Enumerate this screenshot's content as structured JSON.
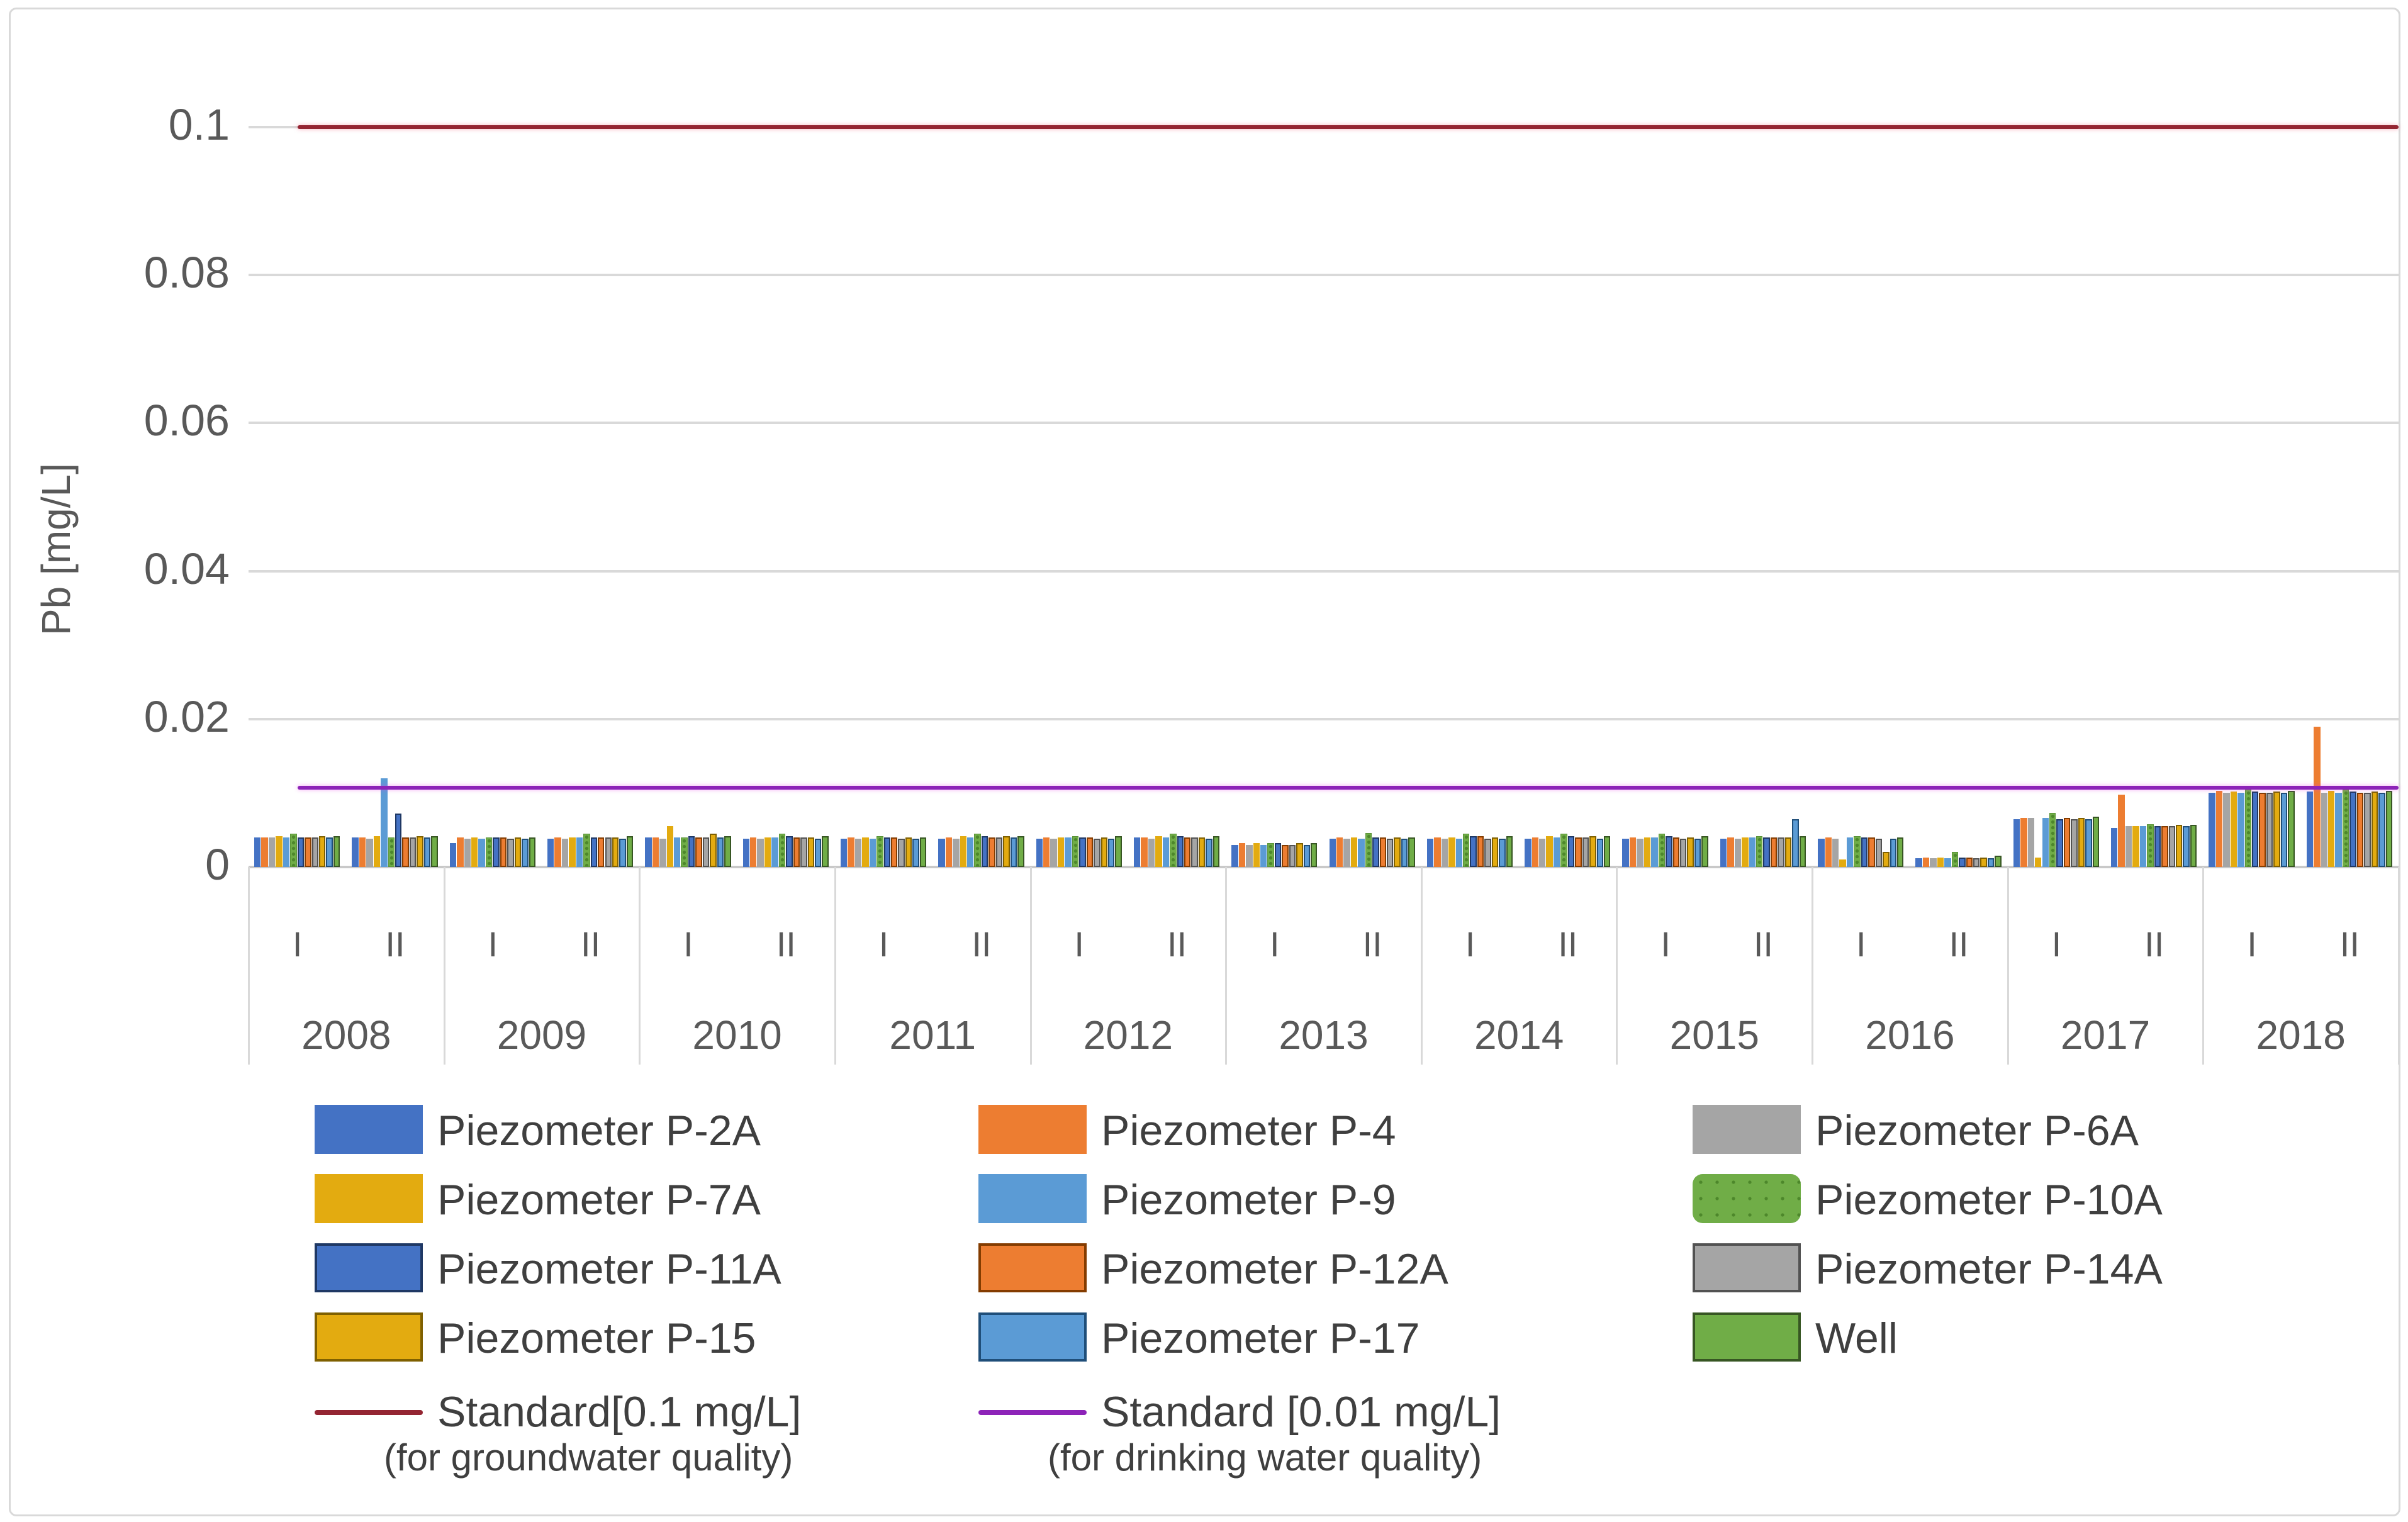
{
  "figure": {
    "background": "#ffffff",
    "border_color": "#d9d9d9"
  },
  "chart_data": {
    "type": "bar",
    "title": "",
    "ylabel": "Pb [mg/L]",
    "xlabel": "",
    "grid": "horizontal",
    "legend_position": "bottom",
    "ylim": [
      0,
      0.105
    ],
    "y_ticks": [
      0,
      0.02,
      0.04,
      0.06,
      0.08,
      0.1
    ],
    "y_tick_labels": [
      "0",
      "0.02",
      "0.04",
      "0.06",
      "0.08",
      "0.1"
    ],
    "years": [
      "2008",
      "2009",
      "2010",
      "2011",
      "2012",
      "2013",
      "2014",
      "2015",
      "2016",
      "2017",
      "2018"
    ],
    "periods": [
      "I",
      "II"
    ],
    "categories": [
      "2008-I",
      "2008-II",
      "2009-I",
      "2009-II",
      "2010-I",
      "2010-II",
      "2011-I",
      "2011-II",
      "2012-I",
      "2012-II",
      "2013-I",
      "2013-II",
      "2014-I",
      "2014-II",
      "2015-I",
      "2015-II",
      "2016-I",
      "2016-II",
      "2017-I",
      "2017-II",
      "2018-I",
      "2018-II"
    ],
    "series": [
      {
        "name": "Piezometer P-2A",
        "color": "#4472c4",
        "border": null,
        "pattern": false,
        "values": [
          0.004,
          0.004,
          0.0032,
          0.0038,
          0.004,
          0.0038,
          0.0038,
          0.0038,
          0.0038,
          0.004,
          0.003,
          0.0038,
          0.0038,
          0.0038,
          0.0038,
          0.0038,
          0.0038,
          0.0012,
          0.0065,
          0.0053,
          0.01,
          0.0102
        ]
      },
      {
        "name": "Piezometer P-4",
        "color": "#ed7d31",
        "border": null,
        "pattern": false,
        "values": [
          0.004,
          0.004,
          0.004,
          0.004,
          0.004,
          0.004,
          0.004,
          0.004,
          0.004,
          0.004,
          0.0032,
          0.004,
          0.004,
          0.004,
          0.004,
          0.004,
          0.004,
          0.0013,
          0.0066,
          0.0098,
          0.0103,
          0.019
        ]
      },
      {
        "name": "Piezometer P-6A",
        "color": "#a5a5a5",
        "border": null,
        "pattern": false,
        "values": [
          0.004,
          0.0038,
          0.0038,
          0.0038,
          0.0038,
          0.0038,
          0.0038,
          0.0038,
          0.0038,
          0.0038,
          0.003,
          0.0038,
          0.0038,
          0.0038,
          0.0038,
          0.0038,
          0.0038,
          0.0012,
          0.0066,
          0.0055,
          0.01,
          0.01
        ]
      },
      {
        "name": "Piezometer P-7A",
        "color": "#e3ab10",
        "border": null,
        "pattern": false,
        "values": [
          0.0042,
          0.0042,
          0.004,
          0.004,
          0.0055,
          0.004,
          0.004,
          0.0042,
          0.004,
          0.0042,
          0.0032,
          0.004,
          0.004,
          0.0042,
          0.004,
          0.004,
          0.001,
          0.0013,
          0.0013,
          0.0055,
          0.0102,
          0.0103
        ]
      },
      {
        "name": "Piezometer P-9",
        "color": "#5b9bd5",
        "border": null,
        "pattern": false,
        "values": [
          0.004,
          0.012,
          0.0038,
          0.004,
          0.004,
          0.004,
          0.0038,
          0.004,
          0.004,
          0.004,
          0.003,
          0.0038,
          0.0038,
          0.004,
          0.004,
          0.004,
          0.004,
          0.0012,
          0.0066,
          0.0055,
          0.01,
          0.01
        ]
      },
      {
        "name": "Piezometer P-10A",
        "color": "#70ad47",
        "border": null,
        "pattern": true,
        "values": [
          0.0045,
          0.004,
          0.004,
          0.0045,
          0.004,
          0.0045,
          0.0042,
          0.0045,
          0.0042,
          0.0045,
          0.0032,
          0.0046,
          0.0045,
          0.0045,
          0.0045,
          0.0042,
          0.0042,
          0.002,
          0.0073,
          0.0058,
          0.0105,
          0.0105
        ]
      },
      {
        "name": "Piezometer P-11A",
        "color": "#4472c4",
        "border": "#1f3864",
        "pattern": false,
        "values": [
          0.004,
          0.0072,
          0.004,
          0.004,
          0.0042,
          0.0042,
          0.004,
          0.0042,
          0.004,
          0.0042,
          0.0032,
          0.004,
          0.0042,
          0.0042,
          0.0042,
          0.004,
          0.004,
          0.0013,
          0.0065,
          0.0055,
          0.0102,
          0.0102
        ]
      },
      {
        "name": "Piezometer P-12A",
        "color": "#ed7d31",
        "border": "#843c00",
        "pattern": false,
        "values": [
          0.004,
          0.004,
          0.004,
          0.004,
          0.004,
          0.004,
          0.004,
          0.004,
          0.004,
          0.004,
          0.003,
          0.004,
          0.0042,
          0.004,
          0.004,
          0.004,
          0.004,
          0.0013,
          0.0066,
          0.0055,
          0.01,
          0.01
        ]
      },
      {
        "name": "Piezometer P-14A",
        "color": "#a5a5a5",
        "border": "#525252",
        "pattern": false,
        "values": [
          0.004,
          0.004,
          0.0038,
          0.004,
          0.004,
          0.004,
          0.0038,
          0.004,
          0.0038,
          0.004,
          0.003,
          0.0038,
          0.0038,
          0.004,
          0.0038,
          0.004,
          0.0038,
          0.0012,
          0.0065,
          0.0055,
          0.01,
          0.01
        ]
      },
      {
        "name": "Piezometer P-15",
        "color": "#e3ab10",
        "border": "#7f6000",
        "pattern": false,
        "values": [
          0.0042,
          0.0042,
          0.004,
          0.004,
          0.0045,
          0.004,
          0.004,
          0.0042,
          0.004,
          0.004,
          0.0032,
          0.004,
          0.004,
          0.0042,
          0.004,
          0.004,
          0.002,
          0.0013,
          0.0066,
          0.0057,
          0.0102,
          0.0102
        ]
      },
      {
        "name": "Piezometer P-17",
        "color": "#5b9bd5",
        "border": "#1f4e79",
        "pattern": false,
        "values": [
          0.004,
          0.004,
          0.0038,
          0.0038,
          0.004,
          0.0038,
          0.0038,
          0.004,
          0.0038,
          0.0038,
          0.003,
          0.0038,
          0.0038,
          0.0038,
          0.0038,
          0.0065,
          0.0038,
          0.0012,
          0.0065,
          0.0055,
          0.01,
          0.01
        ]
      },
      {
        "name": "Well",
        "color": "#70ad47",
        "border": "#375623",
        "pattern": false,
        "values": [
          0.0042,
          0.0042,
          0.004,
          0.0042,
          0.0042,
          0.0042,
          0.004,
          0.0042,
          0.0042,
          0.0042,
          0.0032,
          0.004,
          0.0042,
          0.0042,
          0.0042,
          0.0042,
          0.004,
          0.0015,
          0.0068,
          0.0057,
          0.0103,
          0.0103
        ]
      }
    ],
    "reference_lines": [
      {
        "label": "Standard[0.1 mg/L]",
        "sublabel": "(for groundwater quality)",
        "value": 0.1,
        "display_value": 0.1,
        "color": "#942532",
        "glow": "rgba(240,90,120,0.5)"
      },
      {
        "label": "Standard [0.01 mg/L]",
        "sublabel": "(for drinking water quality)",
        "value": 0.01,
        "display_value": 0.0107,
        "color": "#8d23b8",
        "glow": "rgba(230,60,230,0.45)"
      }
    ]
  },
  "legend": {
    "column_series": [
      [
        0,
        3,
        6,
        9
      ],
      [
        1,
        4,
        7,
        10
      ],
      [
        2,
        5,
        8,
        11
      ]
    ],
    "column_refs": [
      0,
      1,
      null
    ]
  }
}
